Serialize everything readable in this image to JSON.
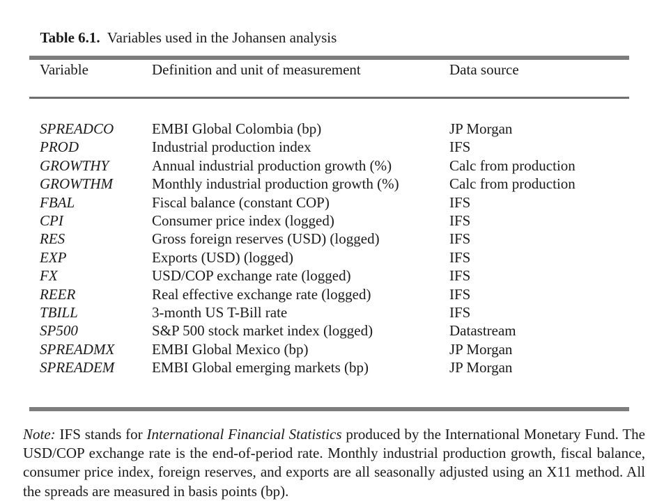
{
  "title": {
    "label_bold": "Table 6.1.",
    "label_rest": "  Variables used in the Johansen analysis"
  },
  "table": {
    "headers": {
      "variable": "Variable",
      "definition": "Definition and unit of measurement",
      "source": "Data source"
    },
    "rows": [
      {
        "variable": "SPREADCO",
        "definition": "EMBI Global Colombia (bp)",
        "source": "JP Morgan"
      },
      {
        "variable": "PROD",
        "definition": "Industrial production index",
        "source": "IFS"
      },
      {
        "variable": "GROWTHY",
        "definition": "Annual industrial production growth (%)",
        "source": "Calc from production"
      },
      {
        "variable": "GROWTHM",
        "definition": "Monthly industrial production growth (%)",
        "source": "Calc from production"
      },
      {
        "variable": "FBAL",
        "definition": "Fiscal balance (constant COP)",
        "source": "IFS"
      },
      {
        "variable": "CPI",
        "definition": "Consumer price index (logged)",
        "source": "IFS"
      },
      {
        "variable": "RES",
        "definition": "Gross foreign reserves (USD) (logged)",
        "source": "IFS"
      },
      {
        "variable": "EXP",
        "definition": "Exports (USD) (logged)",
        "source": "IFS"
      },
      {
        "variable": "FX",
        "definition": "USD/COP exchange rate (logged)",
        "source": "IFS"
      },
      {
        "variable": "REER",
        "definition": "Real effective exchange rate (logged)",
        "source": "IFS"
      },
      {
        "variable": "TBILL",
        "definition": "3-month US T-Bill rate",
        "source": "IFS"
      },
      {
        "variable": "SP500",
        "definition": "S&P 500 stock market index (logged)",
        "source": "Datastream"
      },
      {
        "variable": "SPREADMX",
        "definition": "EMBI Global Mexico (bp)",
        "source": "JP Morgan"
      },
      {
        "variable": "SPREADEM",
        "definition": "EMBI Global emerging markets (bp)",
        "source": "JP Morgan"
      }
    ]
  },
  "note": {
    "line1_label": "Note:",
    "line1_part1": " IFS stands for ",
    "line1_italic": "International Financial Statistics",
    "line1_part2": " produced by the International Monetary Fund.  The",
    "line2": "USD/COP exchange rate is the end-of-period rate.  Monthly industrial production growth, fiscal balance,",
    "line3": "consumer price index, foreign reserves, and exports are all seasonally adjusted using an X11 method.  All",
    "line4": "the spreads are measured in basis points (bp)."
  },
  "colors": {
    "rule_gray": "#7d7d7d",
    "text": "#1a1a1a"
  }
}
